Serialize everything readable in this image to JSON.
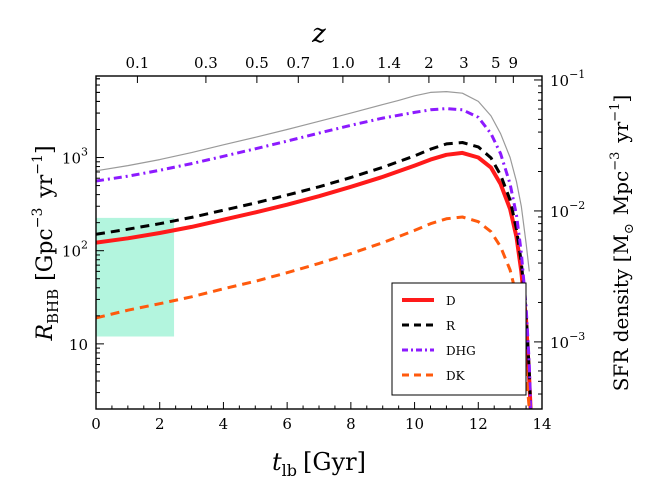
{
  "chart_data": {
    "type": "line",
    "title": "",
    "x": {
      "label_main": "t",
      "label_sub": "lb",
      "label_unit": "[Gyr]",
      "range": [
        0,
        14
      ],
      "ticks": [
        0,
        2,
        4,
        6,
        8,
        10,
        12,
        14
      ],
      "tick_labels": [
        "0",
        "2",
        "4",
        "6",
        "8",
        "10",
        "12",
        "14"
      ]
    },
    "top_axis": {
      "label": "z",
      "ticks": [
        {
          "z": "0.1",
          "t": 1.3
        },
        {
          "z": "0.3",
          "t": 3.45
        },
        {
          "z": "0.5",
          "t": 5.05
        },
        {
          "z": "0.7",
          "t": 6.35
        },
        {
          "z": "1.0",
          "t": 7.75
        },
        {
          "z": "1.4",
          "t": 9.2
        },
        {
          "z": "2",
          "t": 10.45
        },
        {
          "z": "3",
          "t": 11.55
        },
        {
          "z": "5",
          "t": 12.55
        },
        {
          "z": "9",
          "t": 13.1
        }
      ]
    },
    "y_left": {
      "label_main": "R",
      "label_sub": "BHB",
      "label_unit_open": "[Gpc",
      "label_unit_exp1": "−3",
      "label_unit_mid": "yr",
      "label_unit_exp2": "−1",
      "label_unit_close": "]",
      "scale": "log",
      "range": [
        2,
        7500
      ],
      "ticks": [
        {
          "value": 10,
          "base": "10",
          "exp": ""
        },
        {
          "value": 100,
          "base": "10",
          "exp": "2"
        },
        {
          "value": 1000,
          "base": "10",
          "exp": "3"
        }
      ]
    },
    "y_right": {
      "label_text": "SFR density [M",
      "label_sun": "⊙",
      "label_unit_mid": "Mpc",
      "label_exp1": "−3",
      "label_unit_end": "yr",
      "label_exp2": "−1",
      "label_close": "]",
      "scale": "log",
      "ticks": [
        {
          "value": 0.001,
          "base": "10",
          "exp": "−3"
        },
        {
          "value": 0.01,
          "base": "10",
          "exp": "−2"
        },
        {
          "value": 0.1,
          "base": "10",
          "exp": "−1"
        }
      ]
    },
    "shaded_region": {
      "x_range": [
        0,
        2.45
      ],
      "y_range": [
        12,
        225
      ],
      "color": "#b3f5de"
    },
    "series": [
      {
        "name": "SFR density",
        "color": "#9a9a9a",
        "style": "solid",
        "in_legend": false,
        "points": [
          [
            0,
            720
          ],
          [
            1,
            820
          ],
          [
            2,
            950
          ],
          [
            3,
            1130
          ],
          [
            4,
            1370
          ],
          [
            5,
            1650
          ],
          [
            6,
            2000
          ],
          [
            7,
            2450
          ],
          [
            8,
            3000
          ],
          [
            9,
            3700
          ],
          [
            9.5,
            4100
          ],
          [
            10,
            4600
          ],
          [
            10.5,
            5000
          ],
          [
            11,
            5100
          ],
          [
            11.5,
            4900
          ],
          [
            12,
            4000
          ],
          [
            12.4,
            2800
          ],
          [
            12.7,
            1800
          ],
          [
            13,
            1000
          ],
          [
            13.2,
            550
          ],
          [
            13.35,
            300
          ],
          [
            13.5,
            120
          ],
          [
            13.6,
            60
          ]
        ]
      },
      {
        "name": "D",
        "color": "#ff1a1a",
        "style": "solid",
        "in_legend": true,
        "points": [
          [
            0,
            122
          ],
          [
            1,
            136
          ],
          [
            2,
            155
          ],
          [
            3,
            180
          ],
          [
            4,
            215
          ],
          [
            5,
            258
          ],
          [
            6,
            312
          ],
          [
            7,
            385
          ],
          [
            8,
            485
          ],
          [
            9,
            620
          ],
          [
            10,
            820
          ],
          [
            10.5,
            950
          ],
          [
            11,
            1070
          ],
          [
            11.5,
            1120
          ],
          [
            12,
            1000
          ],
          [
            12.4,
            780
          ],
          [
            12.7,
            520
          ],
          [
            13,
            280
          ],
          [
            13.2,
            140
          ],
          [
            13.35,
            60
          ],
          [
            13.5,
            18
          ],
          [
            13.6,
            4
          ],
          [
            13.65,
            1.8
          ]
        ]
      },
      {
        "name": "R",
        "color": "#000000",
        "style": "dashed",
        "in_legend": true,
        "points": [
          [
            0,
            150
          ],
          [
            1,
            170
          ],
          [
            2,
            195
          ],
          [
            3,
            228
          ],
          [
            4,
            272
          ],
          [
            5,
            325
          ],
          [
            6,
            395
          ],
          [
            7,
            485
          ],
          [
            8,
            610
          ],
          [
            9,
            785
          ],
          [
            10,
            1040
          ],
          [
            10.5,
            1230
          ],
          [
            11,
            1400
          ],
          [
            11.5,
            1450
          ],
          [
            12,
            1300
          ],
          [
            12.4,
            990
          ],
          [
            12.7,
            650
          ],
          [
            13,
            350
          ],
          [
            13.2,
            170
          ],
          [
            13.35,
            75
          ],
          [
            13.5,
            22
          ],
          [
            13.6,
            5
          ],
          [
            13.65,
            1.8
          ]
        ]
      },
      {
        "name": "DHG",
        "color": "#8c1aff",
        "style": "dashdot",
        "in_legend": true,
        "points": [
          [
            0,
            560
          ],
          [
            1,
            630
          ],
          [
            2,
            730
          ],
          [
            3,
            860
          ],
          [
            4,
            1030
          ],
          [
            5,
            1240
          ],
          [
            6,
            1500
          ],
          [
            7,
            1830
          ],
          [
            8,
            2220
          ],
          [
            9,
            2650
          ],
          [
            10,
            3050
          ],
          [
            10.5,
            3250
          ],
          [
            11,
            3350
          ],
          [
            11.5,
            3250
          ],
          [
            12,
            2700
          ],
          [
            12.4,
            1800
          ],
          [
            12.7,
            1100
          ],
          [
            13,
            520
          ],
          [
            13.2,
            240
          ],
          [
            13.35,
            95
          ],
          [
            13.5,
            25
          ],
          [
            13.6,
            6
          ],
          [
            13.65,
            1.8
          ]
        ]
      },
      {
        "name": "DK",
        "color": "#ff5a0d",
        "style": "dashed",
        "in_legend": true,
        "points": [
          [
            0,
            19
          ],
          [
            1,
            23
          ],
          [
            2,
            27
          ],
          [
            3,
            32
          ],
          [
            4,
            39
          ],
          [
            5,
            47
          ],
          [
            6,
            58
          ],
          [
            7,
            73
          ],
          [
            8,
            93
          ],
          [
            9,
            122
          ],
          [
            10,
            165
          ],
          [
            10.5,
            195
          ],
          [
            11,
            220
          ],
          [
            11.5,
            230
          ],
          [
            12,
            205
          ],
          [
            12.4,
            160
          ],
          [
            12.7,
            110
          ],
          [
            13,
            62
          ],
          [
            13.2,
            33
          ],
          [
            13.35,
            15
          ],
          [
            13.5,
            5
          ],
          [
            13.6,
            2
          ]
        ]
      }
    ],
    "legend_position": "lower-right"
  }
}
